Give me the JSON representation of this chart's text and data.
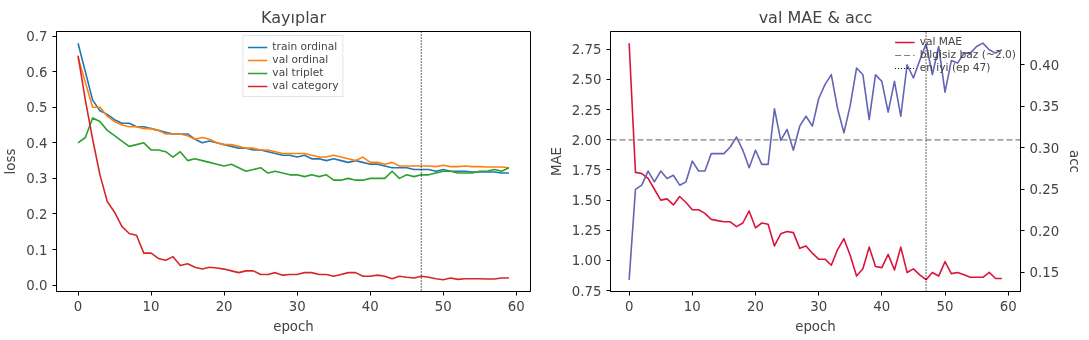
{
  "chart_data": [
    {
      "type": "line",
      "title": "Kayıplar",
      "xlabel": "epoch",
      "ylabel": "loss",
      "x": [
        0,
        1,
        2,
        3,
        4,
        5,
        6,
        7,
        8,
        9,
        10,
        11,
        12,
        13,
        14,
        15,
        16,
        17,
        18,
        19,
        20,
        21,
        22,
        23,
        24,
        25,
        26,
        27,
        28,
        29,
        30,
        31,
        32,
        33,
        34,
        35,
        36,
        37,
        38,
        39,
        40,
        41,
        42,
        43,
        44,
        45,
        46,
        47,
        48,
        49,
        50,
        51,
        52,
        53,
        54,
        55,
        56,
        57,
        58,
        59
      ],
      "series": [
        {
          "name": "train ordinal",
          "color": "#1f77b4",
          "values": [
            0.68,
            0.6,
            0.52,
            0.49,
            0.48,
            0.465,
            0.455,
            0.455,
            0.445,
            0.445,
            0.44,
            0.435,
            0.43,
            0.425,
            0.425,
            0.425,
            0.41,
            0.4,
            0.405,
            0.4,
            0.395,
            0.39,
            0.385,
            0.385,
            0.38,
            0.38,
            0.375,
            0.37,
            0.365,
            0.365,
            0.36,
            0.365,
            0.355,
            0.355,
            0.35,
            0.355,
            0.35,
            0.345,
            0.35,
            0.345,
            0.34,
            0.34,
            0.335,
            0.33,
            0.33,
            0.33,
            0.325,
            0.325,
            0.325,
            0.32,
            0.325,
            0.32,
            0.32,
            0.32,
            0.318,
            0.318,
            0.318,
            0.318,
            0.315,
            0.315
          ]
        },
        {
          "name": "val ordinal",
          "color": "#ff7f0e",
          "values": [
            0.64,
            0.57,
            0.5,
            0.5,
            0.475,
            0.46,
            0.45,
            0.445,
            0.445,
            0.44,
            0.44,
            0.435,
            0.425,
            0.425,
            0.425,
            0.42,
            0.41,
            0.415,
            0.41,
            0.4,
            0.395,
            0.395,
            0.39,
            0.385,
            0.385,
            0.38,
            0.38,
            0.375,
            0.37,
            0.37,
            0.37,
            0.37,
            0.365,
            0.36,
            0.36,
            0.365,
            0.36,
            0.355,
            0.35,
            0.36,
            0.345,
            0.345,
            0.34,
            0.345,
            0.335,
            0.335,
            0.335,
            0.335,
            0.335,
            0.333,
            0.337,
            0.333,
            0.333,
            0.335,
            0.333,
            0.333,
            0.332,
            0.332,
            0.332,
            0.33
          ]
        },
        {
          "name": "val triplet",
          "color": "#2ca02c",
          "values": [
            0.4,
            0.415,
            0.47,
            0.46,
            0.435,
            0.42,
            0.405,
            0.39,
            0.395,
            0.4,
            0.38,
            0.38,
            0.375,
            0.36,
            0.375,
            0.35,
            0.355,
            0.35,
            0.345,
            0.34,
            0.335,
            0.34,
            0.33,
            0.32,
            0.325,
            0.33,
            0.315,
            0.32,
            0.315,
            0.31,
            0.31,
            0.305,
            0.31,
            0.305,
            0.31,
            0.295,
            0.295,
            0.3,
            0.295,
            0.295,
            0.3,
            0.3,
            0.3,
            0.32,
            0.3,
            0.31,
            0.305,
            0.31,
            0.31,
            0.315,
            0.32,
            0.32,
            0.315,
            0.315,
            0.315,
            0.32,
            0.32,
            0.325,
            0.32,
            0.33
          ]
        },
        {
          "name": "val category",
          "color": "#d62728",
          "values": [
            0.645,
            0.52,
            0.41,
            0.31,
            0.235,
            0.205,
            0.165,
            0.145,
            0.14,
            0.09,
            0.09,
            0.075,
            0.07,
            0.08,
            0.055,
            0.06,
            0.05,
            0.045,
            0.05,
            0.048,
            0.045,
            0.04,
            0.035,
            0.04,
            0.04,
            0.03,
            0.03,
            0.035,
            0.028,
            0.03,
            0.03,
            0.035,
            0.035,
            0.03,
            0.03,
            0.025,
            0.03,
            0.035,
            0.035,
            0.025,
            0.025,
            0.028,
            0.025,
            0.018,
            0.025,
            0.022,
            0.02,
            0.025,
            0.022,
            0.018,
            0.015,
            0.02,
            0.016,
            0.018,
            0.018,
            0.018,
            0.017,
            0.017,
            0.02,
            0.02
          ]
        }
      ],
      "xlim": [
        -2.95,
        61.95
      ],
      "xticks": [
        0,
        10,
        20,
        30,
        40,
        50,
        60
      ],
      "ylim": [
        -0.018,
        0.713
      ],
      "yticks": [
        {
          "value": 0,
          "label": "0.0"
        },
        0.1,
        0.2,
        0.3,
        0.4,
        0.5,
        0.6,
        0.7
      ],
      "ref_lines": [
        {
          "axis": "x",
          "value": 47,
          "label": null,
          "color": "#000000",
          "line_style": "dotted"
        }
      ],
      "legend": "top",
      "grid": false,
      "marker": "none",
      "line_style": "solid"
    },
    {
      "type": "line",
      "title": "val MAE & acc",
      "xlabel": "epoch",
      "ylabel": "MAE",
      "y2label": "acc",
      "x": [
        0,
        1,
        2,
        3,
        4,
        5,
        6,
        7,
        8,
        9,
        10,
        11,
        12,
        13,
        14,
        15,
        16,
        17,
        18,
        19,
        20,
        21,
        22,
        23,
        24,
        25,
        26,
        27,
        28,
        29,
        30,
        31,
        32,
        33,
        34,
        35,
        36,
        37,
        38,
        39,
        40,
        41,
        42,
        43,
        44,
        45,
        46,
        47,
        48,
        49,
        50,
        51,
        52,
        53,
        54,
        55,
        56,
        57,
        58,
        59
      ],
      "series": [
        {
          "name": "val MAE",
          "color": "#dc143c",
          "values": [
            2.8,
            1.73,
            1.72,
            1.68,
            1.59,
            1.5,
            1.51,
            1.46,
            1.53,
            1.48,
            1.42,
            1.42,
            1.39,
            1.34,
            1.33,
            1.32,
            1.32,
            1.28,
            1.31,
            1.41,
            1.27,
            1.31,
            1.3,
            1.12,
            1.22,
            1.24,
            1.23,
            1.1,
            1.12,
            1.06,
            1.01,
            1.01,
            0.96,
            1.09,
            1.18,
            1.04,
            0.87,
            0.93,
            1.11,
            0.95,
            0.94,
            1.05,
            0.92,
            1.11,
            0.9,
            0.93,
            0.88,
            0.84,
            0.9,
            0.87,
            0.99,
            0.89,
            0.9,
            0.88,
            0.86,
            0.86,
            0.86,
            0.9,
            0.85,
            0.85
          ]
        },
        {
          "color": "#6464b4",
          "axis": "y2",
          "values": [
            0.141,
            0.25,
            0.255,
            0.272,
            0.259,
            0.272,
            0.263,
            0.267,
            0.255,
            0.259,
            0.284,
            0.272,
            0.272,
            0.293,
            0.293,
            0.293,
            0.301,
            0.313,
            0.297,
            0.276,
            0.297,
            0.28,
            0.28,
            0.347,
            0.309,
            0.322,
            0.297,
            0.326,
            0.338,
            0.326,
            0.359,
            0.376,
            0.388,
            0.347,
            0.318,
            0.351,
            0.396,
            0.388,
            0.334,
            0.388,
            0.38,
            0.343,
            0.38,
            0.338,
            0.4,
            0.384,
            0.405,
            0.425,
            0.388,
            0.422,
            0.367,
            0.405,
            0.402,
            0.414,
            0.414,
            0.422,
            0.426,
            0.418,
            0.414,
            0.418
          ]
        }
      ],
      "xlim": [
        -2.95,
        61.95
      ],
      "xticks": [
        0,
        10,
        20,
        30,
        40,
        50,
        60
      ],
      "ylim": [
        0.742,
        2.898
      ],
      "yticks": [
        {
          "value": 0.75,
          "label": "0.75"
        },
        {
          "value": 1,
          "label": "1.00"
        },
        {
          "value": 1.25,
          "label": "1.25"
        },
        {
          "value": 1.5,
          "label": "1.50"
        },
        {
          "value": 1.75,
          "label": "1.75"
        },
        {
          "value": 2,
          "label": "2.00"
        },
        {
          "value": 2.25,
          "label": "2.25"
        },
        {
          "value": 2.5,
          "label": "2.50"
        },
        {
          "value": 2.75,
          "label": "2.75"
        }
      ],
      "y2lim": [
        0.127,
        0.44
      ],
      "y2ticks": [
        0.15,
        {
          "value": 0.2,
          "label": "0.20"
        },
        0.25,
        {
          "value": 0.3,
          "label": "0.30"
        },
        0.35,
        {
          "value": 0.4,
          "label": "0.40"
        }
      ],
      "ref_lines": [
        {
          "axis": "y",
          "value": 2.0,
          "label": "bilgisiz baz (~2.0)",
          "color": "#808080",
          "line_style": "dashed"
        },
        {
          "axis": "x",
          "value": 47,
          "label": "en iyi (ep 47)",
          "color": "#000000",
          "line_style": "dotted"
        }
      ],
      "legend": "top right",
      "grid": false,
      "marker": "none",
      "line_style": "solid"
    }
  ]
}
